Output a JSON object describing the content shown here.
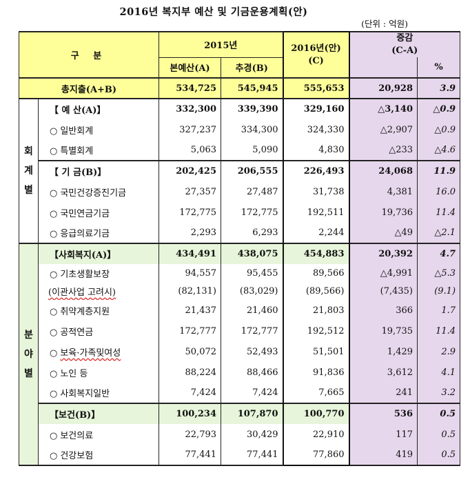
{
  "title": "2016년 복지부 예산 및 기금운용계획(안)",
  "unit": "(단위 : 억원)",
  "header": {
    "gubun": "구 분",
    "year2015": "2015년",
    "col_a": "본예산(A)",
    "col_b": "추경(B)",
    "year2016_line1": "2016년(안)",
    "year2016_line2": "(C)",
    "change_line1": "증감",
    "change_line2": "(C-A)",
    "pct": "%"
  },
  "categories": {
    "accounting": "회\n계\n별",
    "sector": "분\n야\n별"
  },
  "bullet": "○",
  "rows": [
    {
      "id": "total",
      "label": "총지출(A+B)",
      "a": "534,725",
      "b": "545,945",
      "c": "555,653",
      "diff": "20,928",
      "pct": "3.9"
    },
    {
      "id": "budget",
      "label": "【 예 산(A)】",
      "a": "332,300",
      "b": "339,390",
      "c": "329,160",
      "diff": "△3,140",
      "pct": "△0.9"
    },
    {
      "id": "general",
      "label": "일반회계",
      "a": "327,237",
      "b": "334,300",
      "c": "324,330",
      "diff": "△2,907",
      "pct": "△0.9"
    },
    {
      "id": "special",
      "label": "특별회계",
      "a": "5,063",
      "b": "5,090",
      "c": "4,830",
      "diff": "△233",
      "pct": "△4.6"
    },
    {
      "id": "fund",
      "label": "【 기 금(B)】",
      "a": "202,425",
      "b": "206,555",
      "c": "226,493",
      "diff": "24,068",
      "pct": "11.9"
    },
    {
      "id": "health_fund",
      "label": "국민건강증진기금",
      "a": "27,357",
      "b": "27,487",
      "c": "31,738",
      "diff": "4,381",
      "pct": "16.0"
    },
    {
      "id": "pension_fund",
      "label": "국민연금기금",
      "a": "172,775",
      "b": "172,775",
      "c": "192,511",
      "diff": "19,736",
      "pct": "11.4"
    },
    {
      "id": "emergency_fund",
      "label": "응급의료기금",
      "a": "2,293",
      "b": "6,293",
      "c": "2,244",
      "diff": "△49",
      "pct": "△2.1"
    },
    {
      "id": "welfare",
      "label": "【사회복지(A)】",
      "a": "434,491",
      "b": "438,075",
      "c": "454,883",
      "diff": "20,392",
      "pct": "4.7"
    },
    {
      "id": "basic_living",
      "label": "기초생활보장",
      "a": "94,557",
      "b": "95,455",
      "c": "89,566",
      "diff": "△4,991",
      "pct": "△5.3"
    },
    {
      "id": "transfer",
      "label": "(이관사업 고려시)",
      "a": "(82,131)",
      "b": "(83,029)",
      "c": "(89,566)",
      "diff": "(7,435)",
      "pct": "(9.1)"
    },
    {
      "id": "vulnerable",
      "label": "취약계층지원",
      "a": "21,437",
      "b": "21,460",
      "c": "21,803",
      "diff": "366",
      "pct": "1.7"
    },
    {
      "id": "public_pension",
      "label": "공적연금",
      "a": "172,777",
      "b": "172,777",
      "c": "192,512",
      "diff": "19,735",
      "pct": "11.4"
    },
    {
      "id": "childcare",
      "label": "보육·가족및여성",
      "a": "50,072",
      "b": "52,493",
      "c": "51,501",
      "diff": "1,429",
      "pct": "2.9"
    },
    {
      "id": "elderly",
      "label": "노인 등",
      "a": "88,224",
      "b": "88,466",
      "c": "91,836",
      "diff": "3,612",
      "pct": "4.1"
    },
    {
      "id": "welfare_general",
      "label": "사회복지일반",
      "a": "7,424",
      "b": "7,424",
      "c": "7,665",
      "diff": "241",
      "pct": "3.2"
    },
    {
      "id": "health",
      "label": "【보건(B)】",
      "a": "100,234",
      "b": "107,870",
      "c": "100,770",
      "diff": "536",
      "pct": "0.5"
    },
    {
      "id": "medical",
      "label": "보건의료",
      "a": "22,793",
      "b": "30,429",
      "c": "22,910",
      "diff": "117",
      "pct": "0.5"
    },
    {
      "id": "insurance",
      "label": "건강보험",
      "a": "77,441",
      "b": "77,441",
      "c": "77,860",
      "diff": "419",
      "pct": "0.5"
    }
  ]
}
